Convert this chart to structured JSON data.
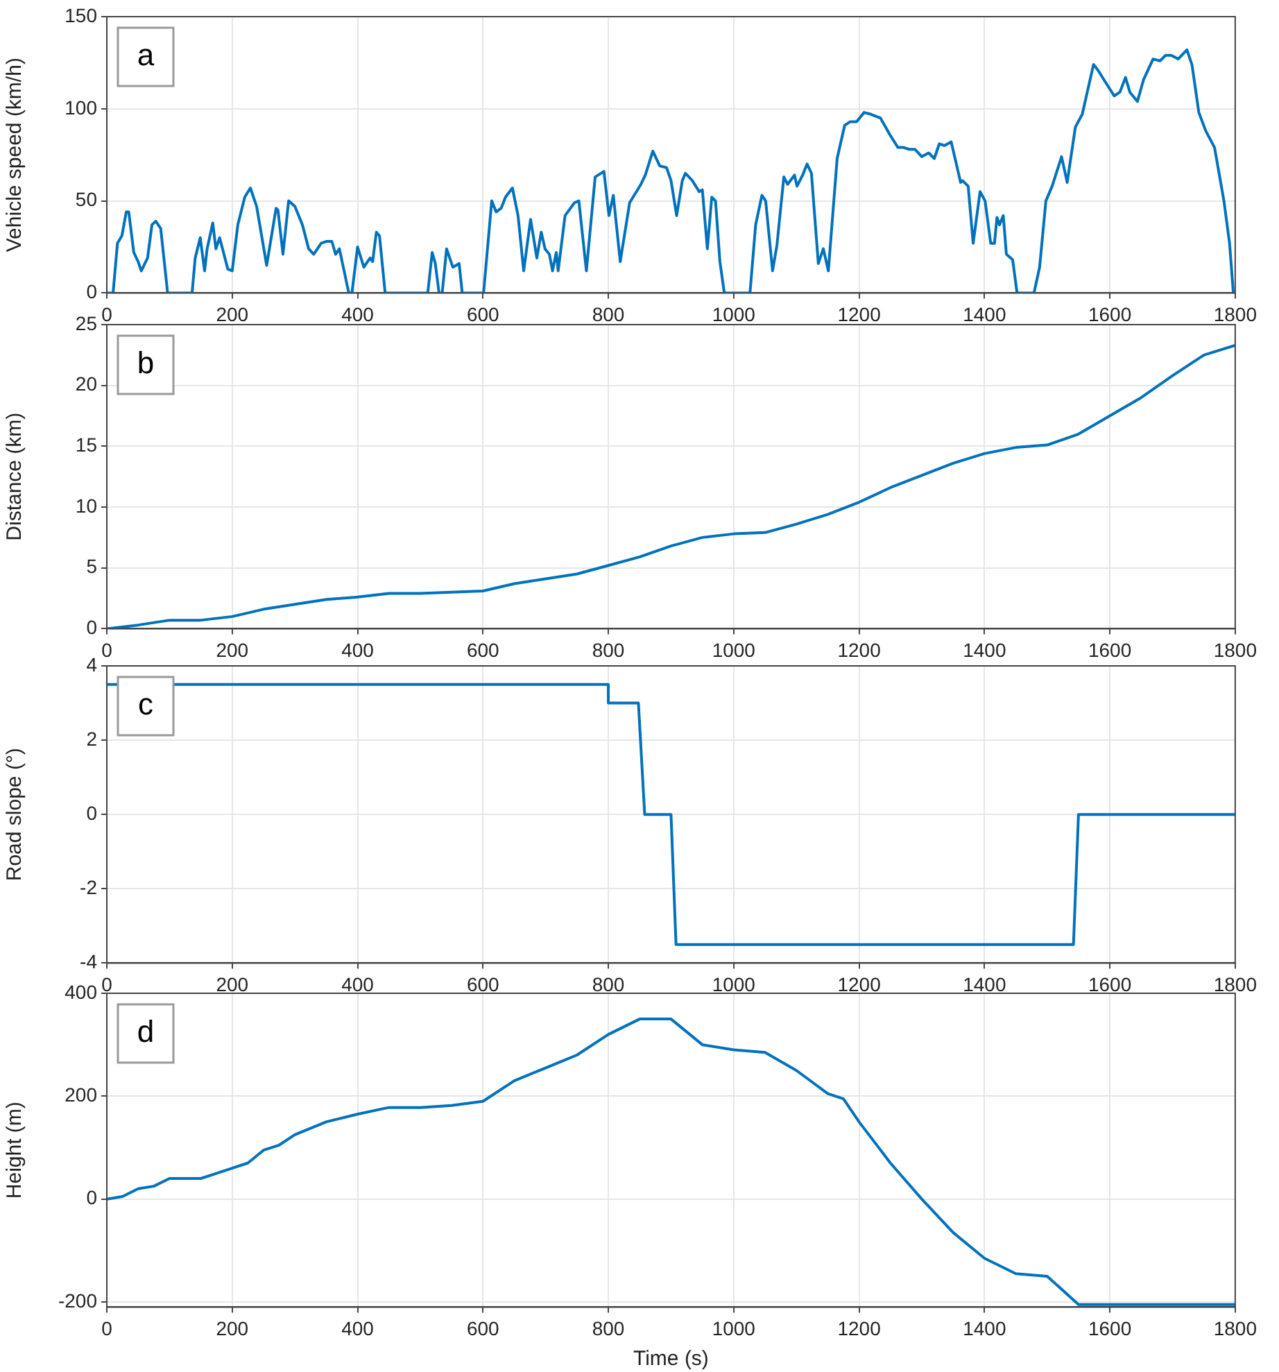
{
  "chart_data": [
    {
      "type": "line",
      "ylabel": "Vehicle speed (km/h)",
      "annotations": [
        "a"
      ],
      "color": "#0072bd",
      "grid": true,
      "marker": "none",
      "line_style": "solid",
      "xlim": [
        0,
        1800
      ],
      "xticks": [
        0,
        200,
        400,
        600,
        800,
        1000,
        1200,
        1400,
        1600,
        1800
      ],
      "ylim": [
        0,
        150
      ],
      "yticks": [
        0,
        50,
        100,
        150
      ],
      "x": [
        0,
        10,
        17,
        24,
        31,
        35,
        43,
        50,
        55,
        65,
        72,
        78,
        86,
        97,
        136,
        141,
        149,
        156,
        160,
        169,
        174,
        180,
        193,
        200,
        209,
        220,
        229,
        239,
        255,
        270,
        273,
        281,
        290,
        300,
        312,
        322,
        330,
        342,
        350,
        359,
        365,
        371,
        386,
        391,
        400,
        410,
        420,
        424,
        430,
        435,
        444,
        512,
        519,
        524,
        530,
        535,
        542,
        552,
        562,
        567,
        601,
        614,
        621,
        629,
        636,
        647,
        656,
        665,
        676,
        686,
        693,
        699,
        706,
        711,
        717,
        720,
        731,
        746,
        753,
        765,
        779,
        793,
        801,
        808,
        819,
        834,
        852,
        859,
        871,
        882,
        893,
        900,
        909,
        918,
        923,
        934,
        945,
        950,
        958,
        965,
        971,
        978,
        985,
        1026,
        1035,
        1045,
        1051,
        1062,
        1069,
        1080,
        1086,
        1097,
        1101,
        1110,
        1117,
        1124,
        1135,
        1143,
        1151,
        1165,
        1177,
        1186,
        1196,
        1208,
        1219,
        1234,
        1249,
        1262,
        1271,
        1280,
        1289,
        1300,
        1311,
        1320,
        1328,
        1336,
        1347,
        1362,
        1365,
        1374,
        1382,
        1393,
        1401,
        1410,
        1416,
        1420,
        1424,
        1430,
        1435,
        1445,
        1452,
        1479,
        1488,
        1498,
        1508,
        1523,
        1532,
        1545,
        1556,
        1574,
        1581,
        1592,
        1607,
        1616,
        1625,
        1632,
        1644,
        1654,
        1669,
        1680,
        1689,
        1698,
        1709,
        1723,
        1731,
        1742,
        1753,
        1767,
        1782,
        1791,
        1797
      ],
      "values": [
        0,
        0,
        27,
        31,
        44,
        44,
        22,
        17,
        12,
        19,
        37,
        39,
        35,
        0,
        0,
        19,
        30,
        12,
        24,
        38,
        24,
        30,
        13,
        12,
        37,
        52,
        57,
        47,
        15,
        46,
        45,
        21,
        50,
        47,
        37,
        24,
        21,
        27,
        28,
        28,
        21,
        24,
        0,
        0,
        25,
        14,
        19,
        17,
        33,
        31,
        0,
        0,
        22,
        16,
        0,
        0,
        24,
        14,
        16,
        0,
        0,
        50,
        44,
        46,
        52,
        57,
        42,
        12,
        40,
        19,
        33,
        24,
        21,
        12,
        22,
        12,
        42,
        49,
        50,
        12,
        63,
        66,
        42,
        53,
        17,
        49,
        59,
        64,
        77,
        69,
        68,
        61,
        42,
        61,
        65,
        61,
        55,
        56,
        24,
        52,
        50,
        17,
        0,
        0,
        37,
        53,
        50,
        12,
        26,
        63,
        59,
        64,
        58,
        64,
        70,
        65,
        16,
        24,
        12,
        73,
        91,
        93,
        93,
        98,
        97,
        95,
        86,
        79,
        79,
        78,
        78,
        74,
        76,
        73,
        81,
        80,
        82,
        60,
        61,
        58,
        27,
        55,
        50,
        27,
        27,
        41,
        37,
        42,
        21,
        18,
        0,
        0,
        14,
        50,
        58,
        74,
        60,
        90,
        97,
        124,
        121,
        115,
        107,
        109,
        117,
        109,
        104,
        116,
        127,
        126,
        129,
        129,
        127,
        132,
        124,
        98,
        88,
        79,
        50,
        27,
        0
      ]
    },
    {
      "type": "line",
      "ylabel": "Distance (km)",
      "annotations": [
        "b"
      ],
      "color": "#0072bd",
      "grid": true,
      "marker": "none",
      "line_style": "solid",
      "xlim": [
        0,
        1800
      ],
      "xticks": [
        0,
        200,
        400,
        600,
        800,
        1000,
        1200,
        1400,
        1600,
        1800
      ],
      "ylim": [
        0,
        25
      ],
      "yticks": [
        0,
        5,
        10,
        15,
        20,
        25
      ],
      "x": [
        0,
        50,
        100,
        150,
        200,
        250,
        300,
        350,
        400,
        450,
        500,
        550,
        600,
        650,
        700,
        750,
        800,
        850,
        900,
        950,
        1000,
        1050,
        1100,
        1150,
        1200,
        1250,
        1300,
        1350,
        1400,
        1450,
        1500,
        1550,
        1600,
        1650,
        1700,
        1750,
        1800
      ],
      "values": [
        0,
        0.3,
        0.7,
        0.7,
        1,
        1.6,
        2,
        2.4,
        2.6,
        2.9,
        2.9,
        3,
        3.1,
        3.7,
        4.1,
        4.5,
        5.2,
        5.9,
        6.8,
        7.5,
        7.8,
        7.9,
        8.6,
        9.4,
        10.4,
        11.6,
        12.6,
        13.6,
        14.4,
        14.9,
        15.1,
        16,
        17.5,
        19,
        20.8,
        22.5,
        23.3
      ]
    },
    {
      "type": "line",
      "ylabel": "Road slope (°)",
      "annotations": [
        "c"
      ],
      "color": "#0072bd",
      "grid": true,
      "marker": "none",
      "line_style": "solid",
      "xlim": [
        0,
        1800
      ],
      "xticks": [
        0,
        200,
        400,
        600,
        800,
        1000,
        1200,
        1400,
        1600,
        1800
      ],
      "ylim": [
        -4,
        4
      ],
      "yticks": [
        -4,
        -2,
        0,
        2,
        4
      ],
      "x": [
        0,
        800,
        800,
        848,
        858,
        858,
        900,
        908,
        1542,
        1550,
        1800
      ],
      "values": [
        3.5,
        3.5,
        3,
        3,
        0,
        0,
        0,
        -3.5,
        -3.5,
        0,
        0
      ]
    },
    {
      "type": "line",
      "xlabel": "Time (s)",
      "ylabel": "Height (m)",
      "annotations": [
        "d"
      ],
      "color": "#0072bd",
      "grid": true,
      "marker": "none",
      "line_style": "solid",
      "xlim": [
        0,
        1800
      ],
      "xticks": [
        0,
        200,
        400,
        600,
        800,
        1000,
        1200,
        1400,
        1600,
        1800
      ],
      "ylim": [
        -210,
        400
      ],
      "yticks": [
        -200,
        0,
        200,
        400
      ],
      "x": [
        0,
        25,
        50,
        75,
        100,
        150,
        175,
        200,
        225,
        250,
        275,
        300,
        350,
        400,
        450,
        500,
        550,
        600,
        650,
        700,
        750,
        800,
        850,
        900,
        950,
        1000,
        1050,
        1100,
        1150,
        1175,
        1200,
        1250,
        1300,
        1350,
        1400,
        1450,
        1500,
        1550,
        1600,
        1800
      ],
      "values": [
        0,
        5,
        20,
        25,
        40,
        40,
        50,
        60,
        70,
        95,
        105,
        125,
        150,
        165,
        178,
        178,
        182,
        190,
        230,
        255,
        280,
        320,
        350,
        350,
        300,
        290,
        285,
        250,
        205,
        195,
        150,
        70,
        0,
        -65,
        -115,
        -145,
        -150,
        -205,
        -205,
        -205
      ]
    }
  ]
}
